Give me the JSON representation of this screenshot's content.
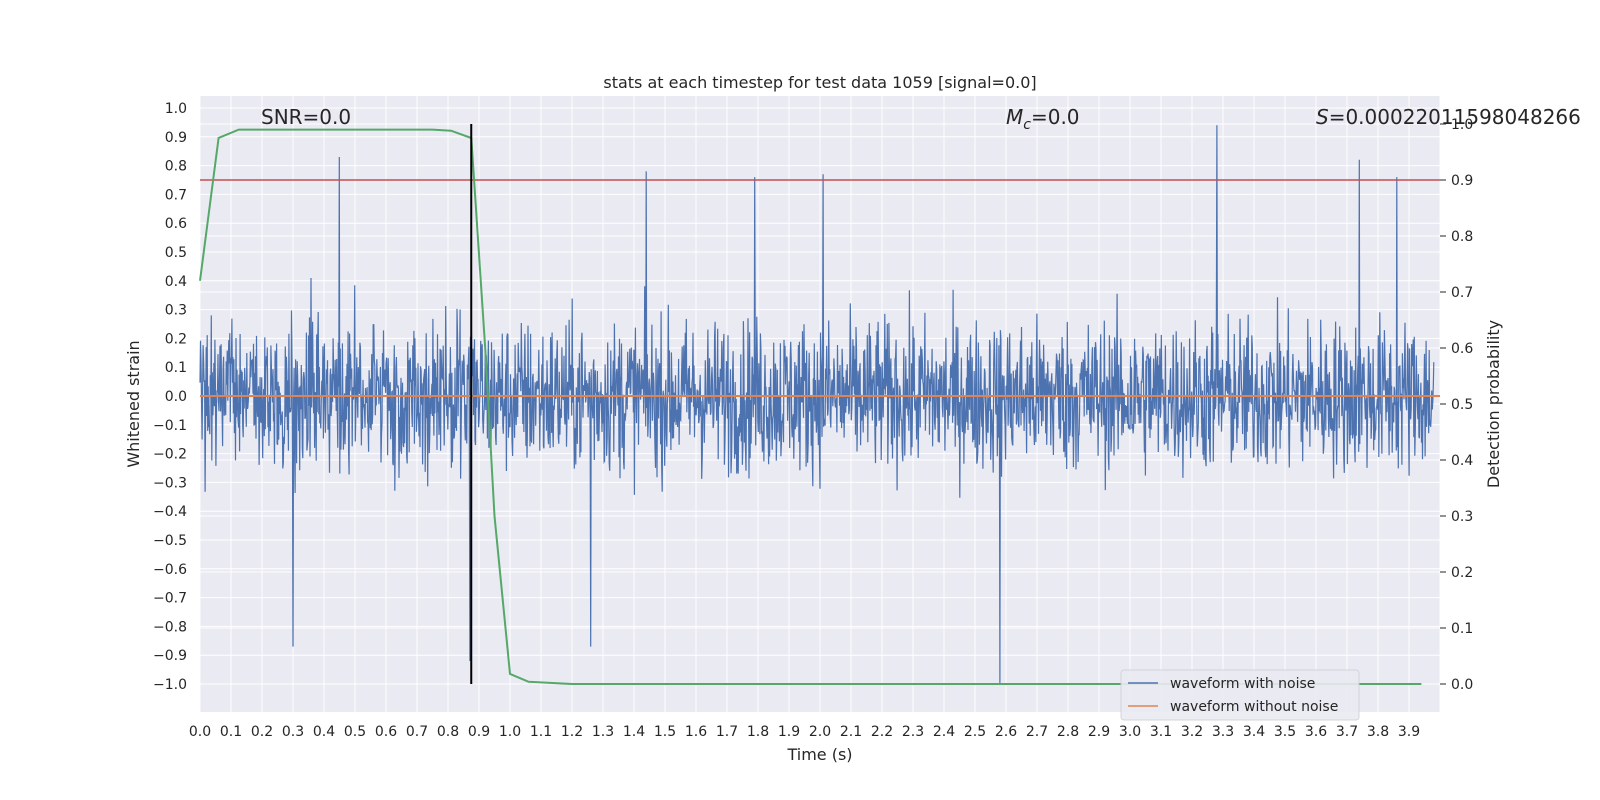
{
  "chart_data": {
    "type": "line",
    "title": "stats at each timestep for test data 1059 [signal=0.0]",
    "xlabel": "Time (s)",
    "ylabel": "Whitened strain",
    "y2label": "Detection probability",
    "xlim": [
      0.0,
      4.0
    ],
    "ylim": [
      -1.1,
      1.1
    ],
    "y2lim": [
      -0.05,
      1.0
    ],
    "grid": true,
    "legend_position": "lower-right",
    "xticks": [
      "0.0",
      "0.1",
      "0.2",
      "0.3",
      "0.4",
      "0.5",
      "0.6",
      "0.7",
      "0.8",
      "0.9",
      "1.0",
      "1.1",
      "1.2",
      "1.3",
      "1.4",
      "1.5",
      "1.6",
      "1.7",
      "1.8",
      "1.9",
      "2.0",
      "2.1",
      "2.2",
      "2.3",
      "2.4",
      "2.5",
      "2.6",
      "2.7",
      "2.8",
      "2.9",
      "3.0",
      "3.1",
      "3.2",
      "3.3",
      "3.4",
      "3.5",
      "3.6",
      "3.7",
      "3.8",
      "3.9"
    ],
    "yticks": [
      "1.0",
      "0.9",
      "0.8",
      "0.7",
      "0.6",
      "0.5",
      "0.4",
      "0.3",
      "0.2",
      "0.1",
      "0.0",
      "−0.1",
      "−0.2",
      "−0.3",
      "−0.4",
      "−0.5",
      "−0.6",
      "−0.7",
      "−0.8",
      "−0.9",
      "−1.0"
    ],
    "y2ticks": [
      "1.0",
      "0.9",
      "0.8",
      "0.7",
      "0.6",
      "0.5",
      "0.4",
      "0.3",
      "0.2",
      "0.1",
      "0.0"
    ],
    "annotations": {
      "snr": "SNR=0.0",
      "mc_symbol": "M",
      "mc_sub": "c",
      "mc_value": "=0.0",
      "s_symbol": "S",
      "s_value": "=0.00022011598048266"
    },
    "series": [
      {
        "name": "waveform with noise",
        "color": "#4c72b0",
        "note": "dense noise signal, mostly within ±0.5, peaks near +0.94 at 3.28 s and −1.0 at 2.58 s",
        "amplitude": 0.5,
        "peaks": [
          {
            "x": 0.45,
            "y": 0.83
          },
          {
            "x": 0.87,
            "y": -0.92
          },
          {
            "x": 1.26,
            "y": -0.87
          },
          {
            "x": 1.44,
            "y": 0.78
          },
          {
            "x": 1.79,
            "y": 0.76
          },
          {
            "x": 2.01,
            "y": 0.77
          },
          {
            "x": 2.58,
            "y": -1.0
          },
          {
            "x": 3.28,
            "y": 0.94
          },
          {
            "x": 3.74,
            "y": 0.82
          },
          {
            "x": 3.86,
            "y": 0.76
          },
          {
            "x": 0.3,
            "y": -0.87
          }
        ]
      },
      {
        "name": "waveform without noise",
        "color": "#dd8452",
        "x": [
          0.0,
          4.0
        ],
        "y": [
          0.0,
          0.0
        ]
      }
    ],
    "detection_probability": {
      "color": "#55a868",
      "x": [
        0.0,
        0.06,
        0.125,
        0.25,
        0.5,
        0.75,
        0.81,
        0.875,
        0.92,
        0.95,
        1.0,
        1.06,
        1.2,
        1.5,
        2.0,
        3.0,
        3.94
      ],
      "y": [
        0.72,
        0.975,
        0.99,
        0.99,
        0.99,
        0.99,
        0.988,
        0.975,
        0.6,
        0.3,
        0.018,
        0.004,
        0.0,
        0.0,
        0.0,
        0.0,
        0.0
      ]
    },
    "threshold_line": {
      "color": "#c44e52",
      "value": 0.9,
      "axis": "y2"
    },
    "marker_line": {
      "color": "#000000",
      "x": 0.875
    }
  }
}
